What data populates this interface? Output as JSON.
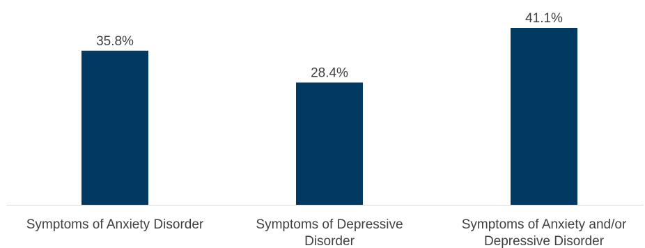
{
  "chart_data": {
    "type": "bar",
    "title": "",
    "xlabel": "",
    "ylabel": "",
    "categories": [
      [
        "Symptoms of Anxiety Disorder"
      ],
      [
        "Symptoms of Depressive",
        "Disorder"
      ],
      [
        "Symptoms of Anxiety and/or",
        "Depressive Disorder"
      ]
    ],
    "values": [
      35.8,
      28.4,
      41.1
    ],
    "data_labels": [
      "35.8%",
      "28.4%",
      "41.1%"
    ],
    "ylim": [
      0,
      45
    ],
    "grid": false,
    "legend": "none",
    "bar_color": "#003a63",
    "axis_color": "#d9d9d9",
    "text_color": "#404040"
  }
}
